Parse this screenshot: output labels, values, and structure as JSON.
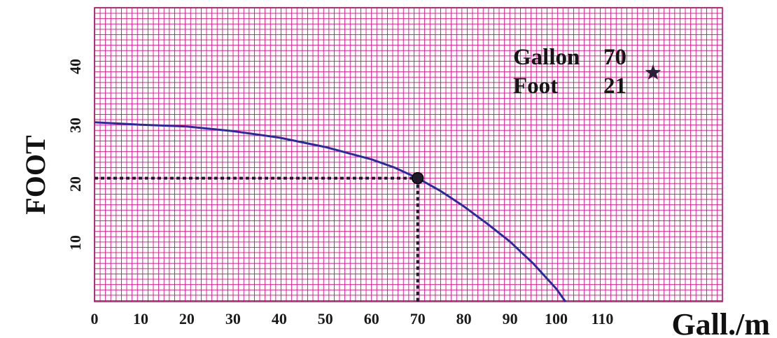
{
  "chart_data": {
    "type": "line",
    "title": "",
    "xlabel": "Gall./m",
    "ylabel": "FOOT",
    "xlim": [
      0,
      136
    ],
    "ylim": [
      0,
      50
    ],
    "x_ticks": [
      0,
      10,
      20,
      30,
      40,
      50,
      60,
      70,
      80,
      90,
      100,
      110
    ],
    "y_ticks": [
      10,
      20,
      30,
      40
    ],
    "grid": true,
    "grid_color": "#d6007a",
    "background_color": "#ffffff",
    "line_color": "#2a2a9e",
    "series": [
      {
        "x": [
          0,
          10,
          20,
          30,
          40,
          50,
          60,
          65,
          70,
          75,
          80,
          85,
          90,
          95,
          100,
          102
        ],
        "y": [
          30.5,
          30.1,
          29.8,
          29.0,
          27.9,
          26.3,
          24.2,
          22.8,
          21.0,
          18.8,
          16.2,
          13.3,
          10.2,
          6.5,
          2.2,
          0
        ]
      }
    ],
    "operating_point": {
      "x": 70,
      "y": 21
    },
    "legend": {
      "position": "top-right",
      "rows": [
        {
          "label": "Gallon",
          "value": "70"
        },
        {
          "label": "Foot",
          "value": "21"
        }
      ],
      "marker": "star-icon"
    }
  }
}
